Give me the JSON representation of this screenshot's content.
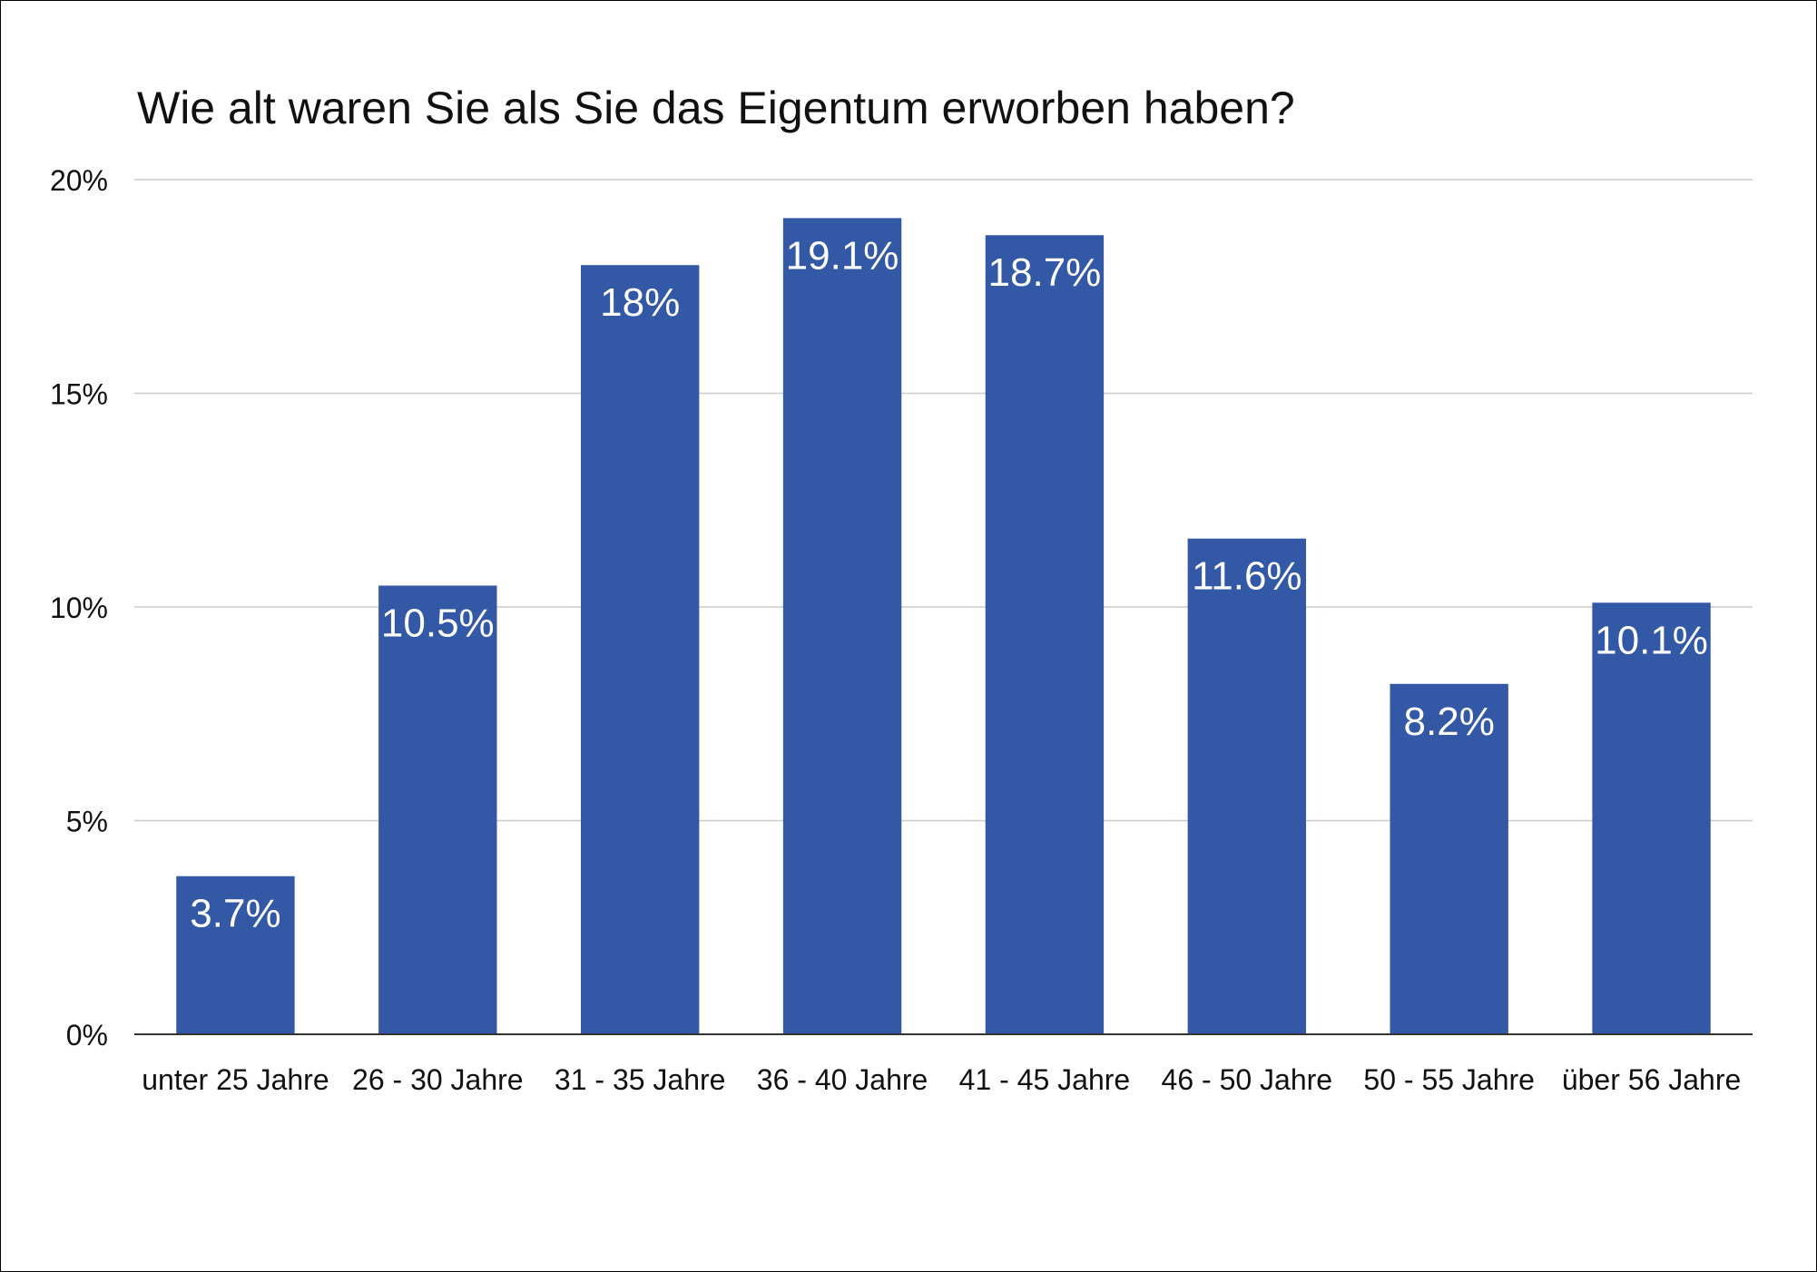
{
  "chart_data": {
    "type": "bar",
    "title": "Wie alt waren Sie als Sie das Eigentum erworben haben?",
    "xlabel": "",
    "ylabel": "",
    "categories": [
      "unter 25 Jahre",
      "26 - 30 Jahre",
      "31 - 35 Jahre",
      "36 - 40 Jahre",
      "41 - 45 Jahre",
      "46 - 50 Jahre",
      "50 - 55 Jahre",
      "über 56 Jahre"
    ],
    "values": [
      3.7,
      10.5,
      18,
      19.1,
      18.7,
      11.6,
      8.2,
      10.1
    ],
    "data_labels": [
      "3.7%",
      "10.5%",
      "18%",
      "19.1%",
      "18.7%",
      "11.6%",
      "8.2%",
      "10.1%"
    ],
    "ylim": [
      0,
      20
    ],
    "yticks": [
      0,
      5,
      10,
      15,
      20
    ],
    "ytick_labels": [
      "0%",
      "5%",
      "10%",
      "15%",
      "20%"
    ],
    "grid": true,
    "legend": "none",
    "bar_color": "#3358a5"
  }
}
